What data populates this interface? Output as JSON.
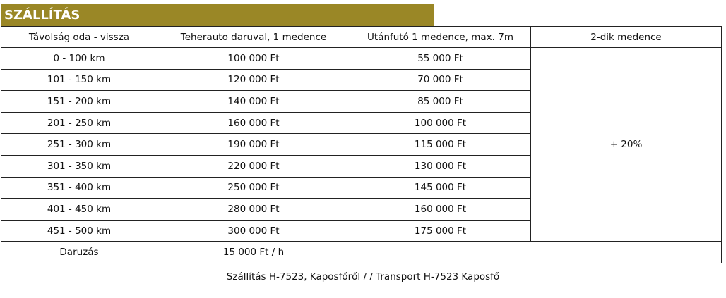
{
  "title": "SZÁLLÍTÁS",
  "headers": [
    "Távolság oda - vissza",
    "Teherauto daruval, 1 medence",
    "Utánfutó 1 medence, max. 7m",
    "2-dik medence"
  ],
  "rows": [
    [
      "0 - 100 km",
      "100 000 Ft",
      "55 000 Ft"
    ],
    [
      "101 - 150 km",
      "120 000 Ft",
      "70 000 Ft"
    ],
    [
      "151 - 200 km",
      "140 000 Ft",
      "85 000 Ft"
    ],
    [
      "201 - 250 km",
      "160 000 Ft",
      "100 000 Ft"
    ],
    [
      "251 - 300 km",
      "190 000 Ft",
      "115 000 Ft"
    ],
    [
      "301 - 350 km",
      "220 000 Ft",
      "130 000 Ft"
    ],
    [
      "351 - 400 km",
      "250 000 Ft",
      "145 000 Ft"
    ],
    [
      "401 - 450 km",
      "280 000 Ft",
      "160 000 Ft"
    ],
    [
      "451 - 500 km",
      "300 000 Ft",
      "175 000 Ft"
    ]
  ],
  "second_pool": "+ 20%",
  "crane_row": [
    "Daruzás",
    "15 000 Ft / h"
  ],
  "footer": "Szállítás H-7523, Kaposfőről /  / Transport H-7523 Kaposfő",
  "colors": {
    "title_bar": "#9a8726"
  }
}
